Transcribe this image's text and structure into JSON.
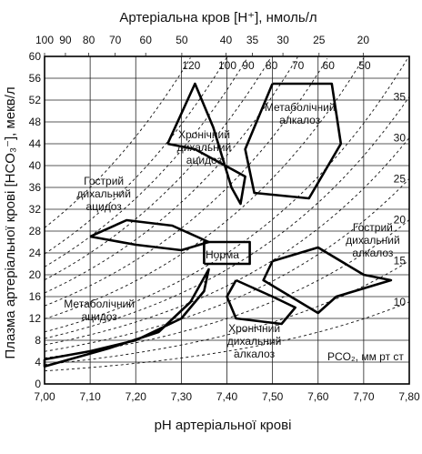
{
  "chart_data": {
    "type": "line",
    "title": "",
    "top_axis": {
      "label": "Артеріальна кров [H⁺], нмоль/л",
      "ticks": [
        100,
        90,
        80,
        70,
        60,
        50,
        40,
        35,
        30,
        25,
        20
      ]
    },
    "xlabel": "pH артеріальної крові",
    "ylabel": "Плазма артеріальної крові [HCO₃⁻], мекв/л",
    "xlim": [
      7.0,
      7.8
    ],
    "ylim": [
      0,
      60
    ],
    "x_ticks": [
      "7,00",
      "7,10",
      "7,20",
      "7,30",
      "7,40",
      "7,50",
      "7,60",
      "7,70",
      "7,80"
    ],
    "y_ticks": [
      0,
      4,
      8,
      12,
      16,
      20,
      24,
      28,
      32,
      36,
      40,
      44,
      48,
      52,
      56,
      60
    ],
    "grid": true,
    "isobars": {
      "label": "PCO₂, мм рт ст",
      "values": [
        120,
        100,
        90,
        80,
        70,
        60,
        50,
        40,
        35,
        30,
        25,
        20,
        15,
        10
      ]
    },
    "regions": [
      {
        "name": "Гострий дихальний ацидоз",
        "points": [
          [
            7.1,
            27
          ],
          [
            7.18,
            30
          ],
          [
            7.28,
            29
          ],
          [
            7.36,
            26
          ],
          [
            7.3,
            24.5
          ],
          [
            7.2,
            25.5
          ],
          [
            7.1,
            27
          ]
        ]
      },
      {
        "name": "Хронічний дихальний ацидоз",
        "points": [
          [
            7.27,
            44
          ],
          [
            7.33,
            55
          ],
          [
            7.37,
            47
          ],
          [
            7.41,
            36
          ],
          [
            7.43,
            33
          ],
          [
            7.44,
            38
          ],
          [
            7.33,
            43
          ],
          [
            7.27,
            44
          ]
        ]
      },
      {
        "name": "Метаболічний алкалоз",
        "points": [
          [
            7.5,
            55
          ],
          [
            7.6,
            55
          ],
          [
            7.63,
            55
          ],
          [
            7.65,
            44
          ],
          [
            7.58,
            34
          ],
          [
            7.46,
            35
          ],
          [
            7.44,
            43
          ],
          [
            7.5,
            55
          ]
        ]
      },
      {
        "name": "Гострий дихальний алкалоз",
        "points": [
          [
            7.5,
            22.5
          ],
          [
            7.6,
            25
          ],
          [
            7.7,
            20
          ],
          [
            7.76,
            19
          ],
          [
            7.64,
            16
          ],
          [
            7.6,
            13
          ],
          [
            7.48,
            19
          ],
          [
            7.5,
            22.5
          ]
        ]
      },
      {
        "name": "Хронічний дихальний алкалоз",
        "points": [
          [
            7.42,
            19
          ],
          [
            7.5,
            16
          ],
          [
            7.55,
            14
          ],
          [
            7.52,
            11
          ],
          [
            7.42,
            12
          ],
          [
            7.4,
            16
          ],
          [
            7.42,
            19
          ]
        ]
      },
      {
        "name": "Метаболічний ацидоз",
        "points": [
          [
            7.0,
            4.5
          ],
          [
            7.1,
            6
          ],
          [
            7.2,
            8
          ],
          [
            7.3,
            12
          ],
          [
            7.35,
            17
          ],
          [
            7.36,
            21
          ],
          [
            7.32,
            15
          ],
          [
            7.25,
            9.5
          ],
          [
            7.14,
            6.5
          ],
          [
            7.0,
            3.2
          ],
          [
            7.0,
            4.5
          ]
        ]
      },
      {
        "name": "Норма",
        "points": [
          [
            7.35,
            22
          ],
          [
            7.45,
            22
          ],
          [
            7.45,
            26
          ],
          [
            7.35,
            26
          ],
          [
            7.35,
            22
          ]
        ]
      }
    ]
  }
}
